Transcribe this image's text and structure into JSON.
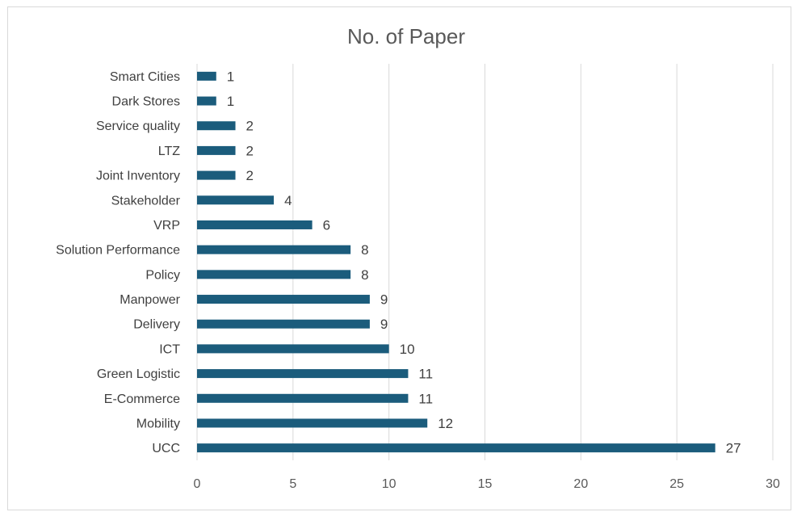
{
  "chart_data": {
    "type": "bar",
    "orientation": "horizontal",
    "title": "No. of Paper",
    "categories": [
      "Smart Cities",
      "Dark Stores",
      "Service quality",
      "LTZ",
      "Joint Inventory",
      "Stakeholder",
      "VRP",
      "Solution Performance",
      "Policy",
      "Manpower",
      "Delivery",
      "ICT",
      "Green Logistic",
      "E-Commerce",
      "Mobility",
      "UCC"
    ],
    "values": [
      1,
      1,
      2,
      2,
      2,
      4,
      6,
      8,
      8,
      9,
      9,
      10,
      11,
      11,
      12,
      27
    ],
    "xlim": [
      0,
      30
    ],
    "xticks": [
      0,
      5,
      10,
      15,
      20,
      25,
      30
    ],
    "grid": true,
    "data_labels": true,
    "bar_color": "#1b5c7c",
    "grid_color": "#d9d9d9",
    "legend": "none"
  }
}
